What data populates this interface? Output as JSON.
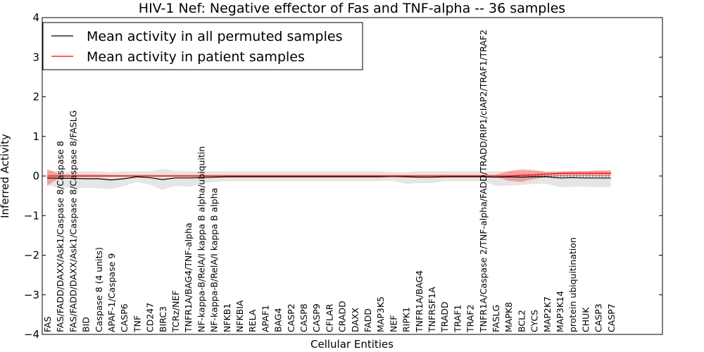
{
  "chart_data": {
    "type": "line",
    "title": "HIV-1 Nef: Negative effector of Fas and TNF-alpha -- 36 samples",
    "xlabel": "Cellular Entities",
    "ylabel": "Inferred Activity",
    "ylim": [
      -4,
      4
    ],
    "yticks": [
      "−4",
      "−3",
      "−2",
      "−1",
      "0",
      "1",
      "2",
      "3",
      "4"
    ],
    "legend_position": "top-left",
    "categories": [
      "FAS",
      "FAS/FADD/DAXX/Ask1/Caspase 8/Caspase 8",
      "FAS/FADD/DAXX/Ask1/Caspase 8/Caspase 8/FASLG",
      "BID",
      "Caspase 8 (4 units)",
      "APAF-1/Caspase 9",
      "CASP6",
      "TNF",
      "CD247",
      "BIRC3",
      "TCRz/NEF",
      "TNFR1A/BAG4/TNF-alpha",
      "NF-kappa-B/RelA/I kappa B alpha/ubiquitin",
      "NF-kappa-B/RelA/I kappa B alpha",
      "NFKB1",
      "NFKBIA",
      "RELA",
      "APAF1",
      "BAG4",
      "CASP2",
      "CASP8",
      "CASP9",
      "CFLAR",
      "CRADD",
      "DAXX",
      "FADD",
      "MAP3K5",
      "NEF",
      "RIPK1",
      "TNFR1A/BAG4",
      "TNFRSF1A",
      "TRADD",
      "TRAF1",
      "TRAF2",
      "TNFR1A/Caspase 2/TNF-alpha/FADD/TRADD/RIP1/cIAP2/TRAF1/TRAF2",
      "FASLG",
      "MAPK8",
      "BCL2",
      "CYCS",
      "MAP2K7",
      "MAP3K14",
      "protein ubiquitination",
      "CHUK",
      "CASP3",
      "CASP7"
    ],
    "series": [
      {
        "name": "Mean activity in all permuted samples",
        "color": "#000000",
        "values": [
          -0.05,
          -0.06,
          -0.06,
          -0.07,
          -0.07,
          -0.1,
          -0.07,
          -0.02,
          -0.04,
          -0.09,
          -0.05,
          -0.05,
          -0.04,
          -0.03,
          -0.02,
          -0.02,
          -0.02,
          -0.02,
          -0.02,
          -0.02,
          -0.02,
          -0.02,
          -0.02,
          -0.02,
          -0.02,
          -0.02,
          -0.02,
          -0.01,
          -0.02,
          -0.03,
          -0.03,
          -0.02,
          -0.02,
          -0.02,
          -0.02,
          -0.03,
          -0.02,
          -0.03,
          -0.02,
          -0.02,
          -0.05,
          -0.04,
          -0.05,
          -0.05,
          -0.05
        ],
        "band_low": [
          -0.25,
          -0.28,
          -0.3,
          -0.3,
          -0.31,
          -0.33,
          -0.25,
          -0.15,
          -0.22,
          -0.35,
          -0.25,
          -0.27,
          -0.2,
          -0.15,
          -0.13,
          -0.13,
          -0.13,
          -0.13,
          -0.13,
          -0.13,
          -0.13,
          -0.13,
          -0.13,
          -0.13,
          -0.13,
          -0.13,
          -0.13,
          -0.12,
          -0.2,
          -0.18,
          -0.18,
          -0.13,
          -0.13,
          -0.13,
          -0.13,
          -0.25,
          -0.24,
          -0.23,
          -0.2,
          -0.2,
          -0.28,
          -0.27,
          -0.27,
          -0.28,
          -0.28
        ],
        "band_high": [
          0.13,
          0.12,
          0.12,
          0.12,
          0.12,
          0.1,
          0.12,
          0.12,
          0.12,
          0.18,
          0.13,
          0.12,
          0.12,
          0.12,
          0.12,
          0.12,
          0.12,
          0.12,
          0.12,
          0.12,
          0.12,
          0.12,
          0.12,
          0.12,
          0.12,
          0.12,
          0.12,
          0.1,
          0.1,
          0.12,
          0.12,
          0.12,
          0.12,
          0.12,
          0.12,
          0.12,
          0.12,
          0.12,
          0.12,
          0.12,
          0.13,
          0.13,
          0.13,
          0.13,
          0.13
        ]
      },
      {
        "name": "Mean activity in patient samples",
        "color": "#ff0000",
        "values": [
          0.0,
          0.0,
          0.0,
          0.0,
          0.0,
          0.0,
          0.0,
          0.0,
          0.0,
          0.0,
          0.0,
          0.0,
          0.0,
          0.0,
          0.0,
          0.0,
          0.0,
          0.0,
          0.0,
          0.0,
          0.0,
          0.0,
          0.0,
          0.0,
          0.0,
          0.0,
          0.0,
          0.0,
          0.0,
          0.0,
          0.0,
          0.0,
          0.0,
          0.0,
          0.0,
          0.0,
          0.0,
          0.02,
          0.03,
          0.05,
          0.07,
          0.07,
          0.07,
          0.07,
          0.07
        ],
        "band_low": [
          -0.24,
          -0.04,
          -0.03,
          -0.03,
          -0.03,
          -0.02,
          -0.02,
          -0.02,
          -0.02,
          -0.02,
          -0.02,
          -0.02,
          -0.02,
          -0.02,
          -0.02,
          -0.02,
          -0.02,
          -0.02,
          -0.02,
          -0.02,
          -0.02,
          -0.02,
          -0.02,
          -0.02,
          -0.02,
          -0.02,
          -0.02,
          -0.02,
          -0.02,
          -0.02,
          -0.02,
          -0.02,
          -0.02,
          -0.02,
          -0.02,
          -0.02,
          -0.12,
          -0.15,
          -0.08,
          -0.02,
          -0.01,
          0.0,
          0.0,
          0.0,
          0.0
        ],
        "band_high": [
          0.17,
          0.05,
          0.04,
          0.04,
          0.04,
          0.03,
          0.03,
          0.03,
          0.03,
          0.03,
          0.03,
          0.03,
          0.03,
          0.03,
          0.03,
          0.03,
          0.03,
          0.03,
          0.03,
          0.03,
          0.03,
          0.03,
          0.03,
          0.03,
          0.03,
          0.03,
          0.03,
          0.03,
          0.03,
          0.03,
          0.03,
          0.03,
          0.03,
          0.03,
          0.03,
          0.03,
          0.12,
          0.17,
          0.15,
          0.1,
          0.1,
          0.12,
          0.12,
          0.14,
          0.14
        ]
      }
    ],
    "reference_line": 0
  }
}
